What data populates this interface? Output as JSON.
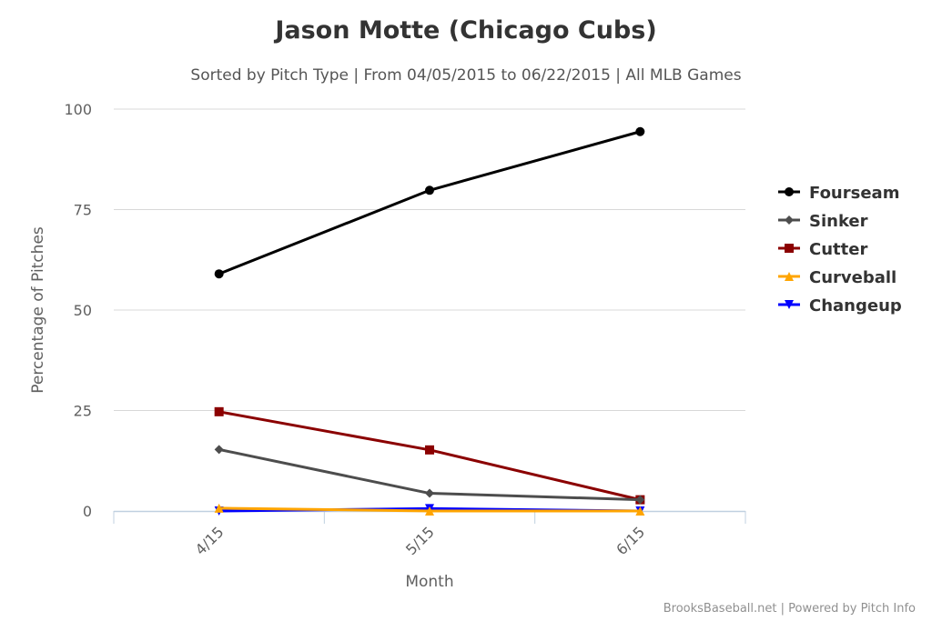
{
  "chart_data": {
    "type": "line",
    "title": "Jason Motte (Chicago Cubs)",
    "subtitle": "Sorted by Pitch Type | From 04/05/2015 to 06/22/2015 | All MLB Games",
    "xlabel": "Month",
    "ylabel": "Percentage of Pitches",
    "categories": [
      "4/15",
      "5/15",
      "6/15"
    ],
    "ylim": [
      0,
      100
    ],
    "yticks": [
      0,
      25,
      50,
      75,
      100
    ],
    "grid": true,
    "legend_position": "right",
    "credits": "BrooksBaseball.net | Powered by Pitch Info",
    "series": [
      {
        "name": "Fourseam",
        "color": "#000000",
        "marker": "circle",
        "values": [
          59.0,
          79.8,
          94.4
        ]
      },
      {
        "name": "Sinker",
        "color": "#4d4d4d",
        "marker": "diamond",
        "values": [
          15.3,
          4.4,
          2.8
        ]
      },
      {
        "name": "Cutter",
        "color": "#8b0000",
        "marker": "square",
        "values": [
          24.7,
          15.2,
          2.8
        ]
      },
      {
        "name": "Curveball",
        "color": "#ffa500",
        "marker": "triangle",
        "values": [
          0.7,
          0.0,
          0.0
        ]
      },
      {
        "name": "Changeup",
        "color": "#0000ff",
        "marker": "triangle-down",
        "values": [
          0.0,
          0.6,
          0.0
        ]
      }
    ]
  }
}
